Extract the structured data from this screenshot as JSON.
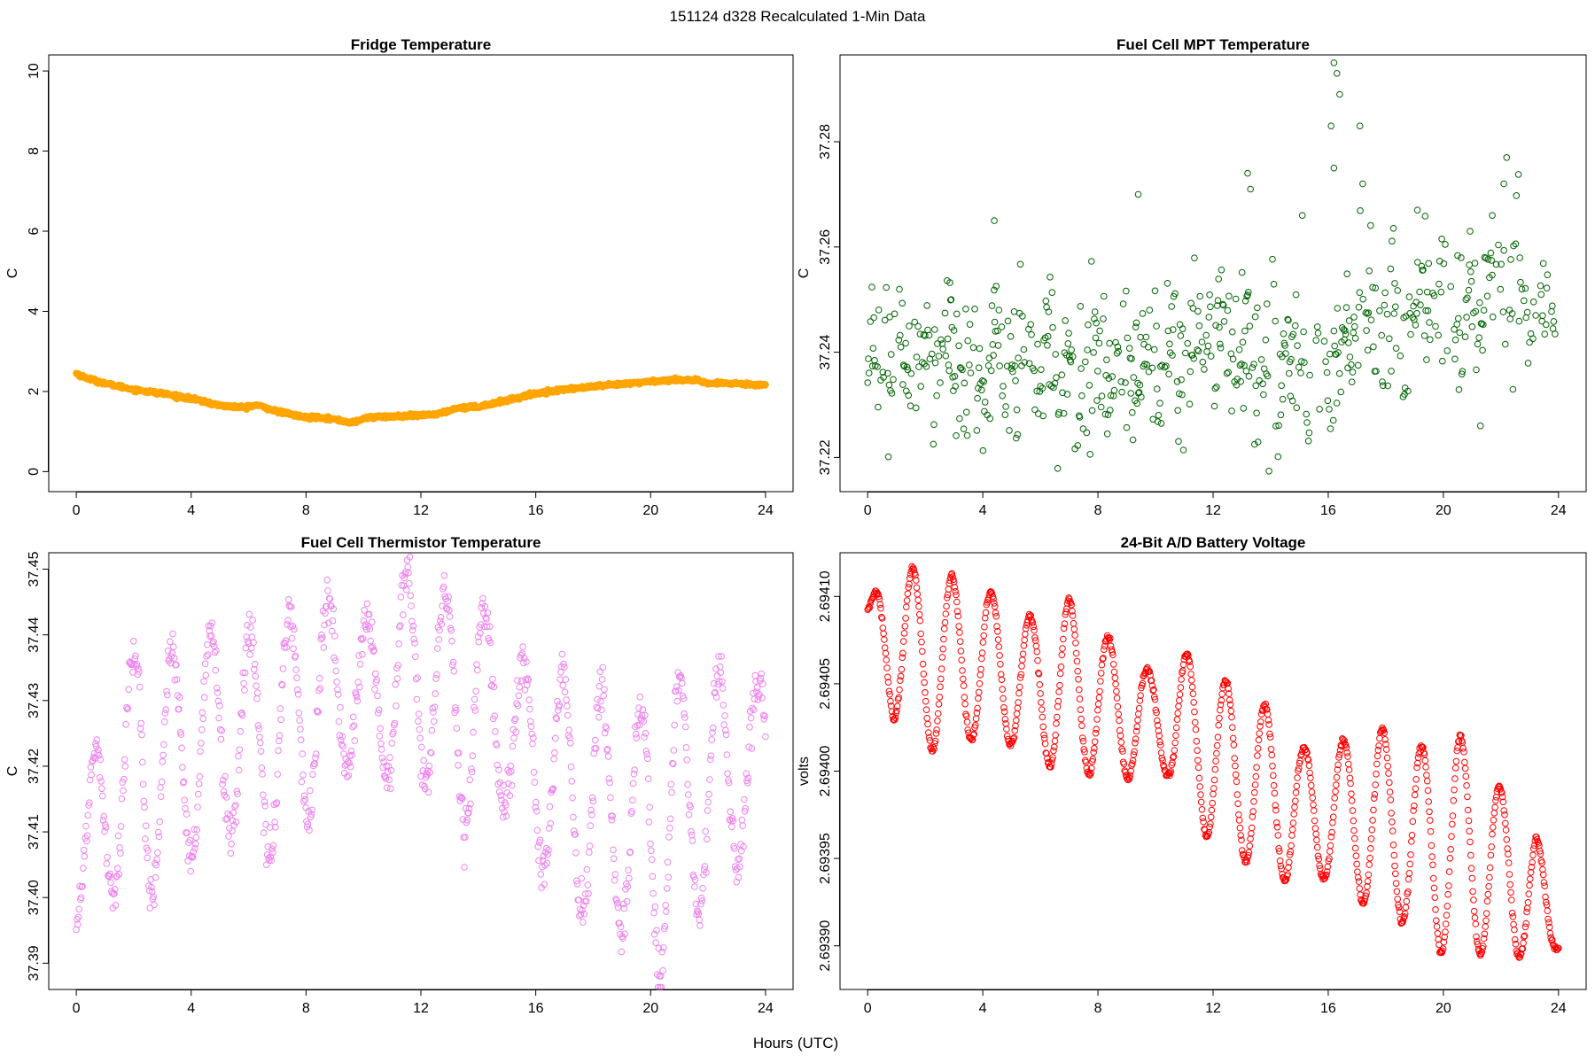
{
  "figure": {
    "title": "151124   d328   Recalculated 1-Min Data",
    "xlabel": "Hours (UTC)"
  },
  "chart_data": [
    {
      "type": "scatter",
      "title": "Fridge Temperature",
      "ylabel": "C",
      "xlim": [
        -0.96,
        24.96
      ],
      "ylim": [
        -0.5,
        10.4
      ],
      "xticks": [
        0,
        4,
        8,
        12,
        16,
        20,
        24
      ],
      "yticks": [
        0,
        2,
        4,
        6,
        8,
        10
      ],
      "ytick_labels": [
        "0",
        "2",
        "4",
        "6",
        "8",
        "10"
      ],
      "color": "#FFA500",
      "marker": "filled",
      "trend": [
        [
          0,
          2.45
        ],
        [
          0.3,
          2.35
        ],
        [
          1,
          2.2
        ],
        [
          2,
          2.05
        ],
        [
          3,
          1.95
        ],
        [
          4,
          1.82
        ],
        [
          5,
          1.65
        ],
        [
          5.8,
          1.6
        ],
        [
          6.3,
          1.66
        ],
        [
          7,
          1.5
        ],
        [
          8,
          1.35
        ],
        [
          8.5,
          1.36
        ],
        [
          9,
          1.3
        ],
        [
          9.6,
          1.22
        ],
        [
          10.2,
          1.36
        ],
        [
          11,
          1.37
        ],
        [
          12,
          1.4
        ],
        [
          12.7,
          1.45
        ],
        [
          13.2,
          1.58
        ],
        [
          14,
          1.62
        ],
        [
          15,
          1.78
        ],
        [
          16,
          1.95
        ],
        [
          17,
          2.05
        ],
        [
          18,
          2.12
        ],
        [
          19,
          2.18
        ],
        [
          20,
          2.25
        ],
        [
          21,
          2.3
        ],
        [
          21.5,
          2.28
        ],
        [
          22,
          2.2
        ],
        [
          23,
          2.2
        ],
        [
          24,
          2.16
        ]
      ],
      "noise": 0.02
    },
    {
      "type": "scatter",
      "title": "Fuel Cell MPT Temperature",
      "ylabel": "C",
      "xlim": [
        -0.96,
        24.96
      ],
      "ylim": [
        37.2135,
        37.2965
      ],
      "xticks": [
        0,
        4,
        8,
        12,
        16,
        20,
        24
      ],
      "yticks": [
        37.22,
        37.24,
        37.26,
        37.28
      ],
      "ytick_labels": [
        "37.22",
        "37.24",
        "37.26",
        "37.28"
      ],
      "color": "#006400",
      "marker": "open",
      "trend": [
        [
          0,
          37.24
        ],
        [
          2,
          37.238
        ],
        [
          4,
          37.237
        ],
        [
          6,
          37.241
        ],
        [
          7.5,
          37.234
        ],
        [
          9,
          37.236
        ],
        [
          10.5,
          37.237
        ],
        [
          12,
          37.242
        ],
        [
          14,
          37.238
        ],
        [
          15.5,
          37.236
        ],
        [
          17,
          37.244
        ],
        [
          18.5,
          37.245
        ],
        [
          19.5,
          37.252
        ],
        [
          20.5,
          37.246
        ],
        [
          21.5,
          37.252
        ],
        [
          24,
          37.248
        ]
      ],
      "noise": 0.007,
      "outliers": [
        [
          16.2,
          37.295
        ],
        [
          16.3,
          37.293
        ],
        [
          16.4,
          37.289
        ],
        [
          16.1,
          37.283
        ],
        [
          17.1,
          37.283
        ],
        [
          13.2,
          37.274
        ],
        [
          9.4,
          37.27
        ],
        [
          22.2,
          37.277
        ],
        [
          16.2,
          37.275
        ],
        [
          17.2,
          37.272
        ],
        [
          13.3,
          37.271
        ],
        [
          22.1,
          37.272
        ],
        [
          4.4,
          37.265
        ],
        [
          15.1,
          37.266
        ],
        [
          21.7,
          37.266
        ],
        [
          19.1,
          37.267
        ]
      ]
    },
    {
      "type": "scatter",
      "title": "Fuel Cell Thermistor Temperature",
      "ylabel": "C",
      "xlim": [
        -0.96,
        24.96
      ],
      "ylim": [
        37.386,
        37.4525
      ],
      "xticks": [
        0,
        4,
        8,
        12,
        16,
        20,
        24
      ],
      "yticks": [
        37.39,
        37.4,
        37.41,
        37.42,
        37.43,
        37.44,
        37.45
      ],
      "ytick_labels": [
        "37.39",
        "37.40",
        "37.41",
        "37.42",
        "37.43",
        "37.44",
        "37.45"
      ],
      "color": "#EE82EE",
      "marker": "open",
      "oscillation": {
        "period": 1.36,
        "phase0": -0.45
      },
      "envelope_upper": [
        [
          0,
          37.404
        ],
        [
          0.5,
          37.42
        ],
        [
          0.9,
          37.428
        ],
        [
          2.1,
          37.438
        ],
        [
          3.6,
          37.438
        ],
        [
          5,
          37.441
        ],
        [
          6.3,
          37.44
        ],
        [
          7.7,
          37.445
        ],
        [
          9,
          37.445
        ],
        [
          10.3,
          37.442
        ],
        [
          11.5,
          37.451
        ],
        [
          12.8,
          37.447
        ],
        [
          14.1,
          37.446
        ],
        [
          15.5,
          37.436
        ],
        [
          16.8,
          37.434
        ],
        [
          18.2,
          37.432
        ],
        [
          19.6,
          37.429
        ],
        [
          20.9,
          37.433
        ],
        [
          22.3,
          37.435
        ],
        [
          23.7,
          37.432
        ],
        [
          24,
          37.43
        ]
      ],
      "envelope_lower": [
        [
          0,
          37.397
        ],
        [
          1.4,
          37.401
        ],
        [
          2.8,
          37.401
        ],
        [
          4.2,
          37.406
        ],
        [
          5.6,
          37.41
        ],
        [
          7,
          37.405
        ],
        [
          8.3,
          37.414
        ],
        [
          9.6,
          37.42
        ],
        [
          10.9,
          37.417
        ],
        [
          12.2,
          37.418
        ],
        [
          13.6,
          37.41
        ],
        [
          14.9,
          37.414
        ],
        [
          16.3,
          37.403
        ],
        [
          17.6,
          37.397
        ],
        [
          19,
          37.394
        ],
        [
          20.3,
          37.388
        ],
        [
          21.7,
          37.397
        ],
        [
          23,
          37.403
        ],
        [
          24,
          37.42
        ]
      ],
      "noise": 0.0018
    },
    {
      "type": "scatter",
      "title": "24-Bit A/D Battery Voltage",
      "ylabel": "volts",
      "xlim": [
        -0.96,
        24.96
      ],
      "ylim": [
        2.693875,
        2.694125
      ],
      "xticks": [
        0,
        4,
        8,
        12,
        16,
        20,
        24
      ],
      "yticks": [
        2.6939,
        2.69395,
        2.694,
        2.69405,
        2.6941
      ],
      "ytick_labels": [
        "2.69390",
        "2.69395",
        "2.69400",
        "2.69405",
        "2.69410"
      ],
      "color": "#FF0000",
      "marker": "open",
      "oscillation": {
        "period": 1.36,
        "phase0": -0.15
      },
      "envelope_upper": [
        [
          0,
          2.694092
        ],
        [
          0.3,
          2.694105
        ],
        [
          1.6,
          2.694116
        ],
        [
          3,
          2.694111
        ],
        [
          4.3,
          2.694103
        ],
        [
          5.7,
          2.694088
        ],
        [
          7,
          2.694099
        ],
        [
          8.4,
          2.694076
        ],
        [
          9.8,
          2.694057
        ],
        [
          11.1,
          2.694068
        ],
        [
          12.4,
          2.694052
        ],
        [
          13.8,
          2.694038
        ],
        [
          15.1,
          2.694013
        ],
        [
          16.5,
          2.694018
        ],
        [
          17.9,
          2.694024
        ],
        [
          19.2,
          2.694014
        ],
        [
          20.5,
          2.694022
        ],
        [
          21.9,
          2.693992
        ],
        [
          23.2,
          2.693967
        ],
        [
          24,
          2.693902
        ]
      ],
      "envelope_lower": [
        [
          0,
          2.694092
        ],
        [
          0.9,
          2.694029
        ],
        [
          2.3,
          2.694011
        ],
        [
          3.6,
          2.694018
        ],
        [
          5,
          2.694015
        ],
        [
          6.3,
          2.694003
        ],
        [
          7.7,
          2.693998
        ],
        [
          9.1,
          2.693996
        ],
        [
          10.4,
          2.693998
        ],
        [
          11.8,
          2.693962
        ],
        [
          13.1,
          2.693948
        ],
        [
          14.5,
          2.693937
        ],
        [
          15.9,
          2.693938
        ],
        [
          17.2,
          2.693924
        ],
        [
          18.6,
          2.693913
        ],
        [
          19.9,
          2.693896
        ],
        [
          21.3,
          2.693895
        ],
        [
          22.6,
          2.693893
        ],
        [
          24,
          2.693898
        ]
      ],
      "noise": 8e-07
    }
  ]
}
